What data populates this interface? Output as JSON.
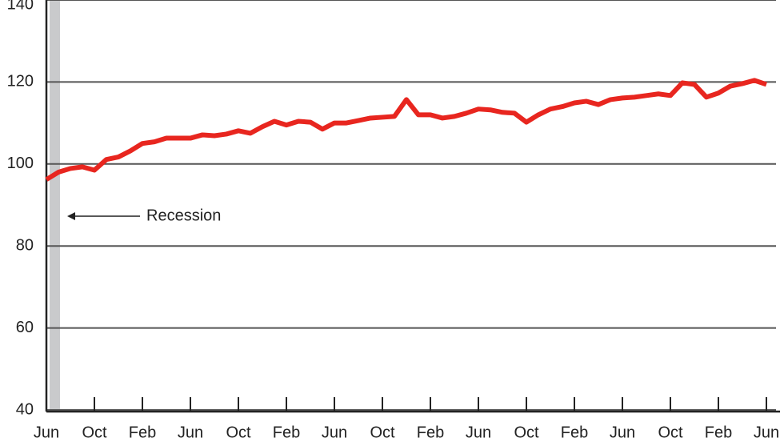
{
  "chart_data": {
    "type": "line",
    "annotation": "Recession",
    "categories": [
      "Jun",
      null,
      null,
      null,
      "Oct",
      null,
      null,
      null,
      "Feb",
      null,
      null,
      null,
      "Jun",
      null,
      null,
      null,
      "Oct",
      null,
      null,
      null,
      "Feb",
      null,
      null,
      null,
      "Jun",
      null,
      null,
      null,
      "Oct",
      null,
      null,
      null,
      "Feb",
      null,
      null,
      null,
      "Jun",
      null,
      null,
      null,
      "Oct",
      null,
      null,
      null,
      "Feb",
      null,
      null,
      null,
      "Jun",
      null,
      null,
      null,
      "Oct",
      null,
      null,
      null,
      "Feb",
      null,
      null,
      null,
      "Jun"
    ],
    "series": [
      {
        "color": "#e8261f",
        "values": [
          96.2,
          98,
          98.9,
          99.3,
          98.5,
          101.1,
          101.7,
          103.2,
          105,
          105.4,
          106.3,
          106.3,
          106.3,
          107.1,
          106.9,
          107.3,
          108.1,
          107.5,
          109.1,
          110.4,
          109.5,
          110.4,
          110.2,
          108.5,
          110,
          110,
          110.6,
          111.2,
          111.4,
          111.6,
          115.7,
          112,
          112,
          111.2,
          111.6,
          112.4,
          113.4,
          113.2,
          112.6,
          112.4,
          110.2,
          112,
          113.4,
          114,
          114.9,
          115.3,
          114.5,
          115.7,
          116.1,
          116.3,
          116.7,
          117.1,
          116.7,
          119.8,
          119.4,
          116.3,
          117.3,
          119,
          119.6,
          120.4,
          119.4
        ]
      }
    ],
    "ylim": [
      40,
      140
    ],
    "yticks": [
      40,
      60,
      80,
      100,
      120,
      140
    ],
    "grid": true
  }
}
